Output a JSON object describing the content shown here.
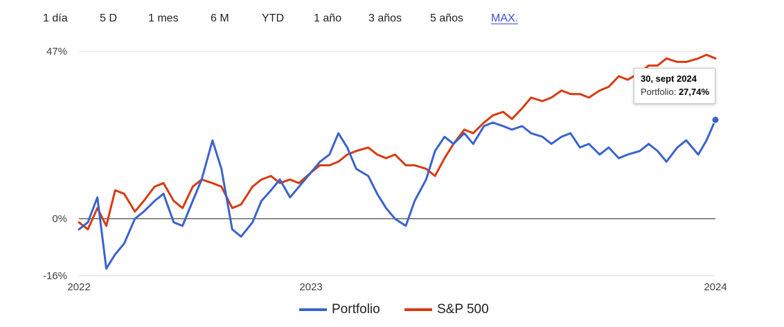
{
  "ranges": [
    {
      "label": "1 día",
      "active": false
    },
    {
      "label": "5 D",
      "active": false
    },
    {
      "label": "1 mes",
      "active": false
    },
    {
      "label": "6 M",
      "active": false
    },
    {
      "label": "YTD",
      "active": false
    },
    {
      "label": "1 año",
      "active": false
    },
    {
      "label": "3 años",
      "active": false
    },
    {
      "label": "5 años",
      "active": false
    },
    {
      "label": "MAX.",
      "active": true
    }
  ],
  "tooltip": {
    "date": "30, sept 2024",
    "series_label": "Portfolio:",
    "value": "27,74%"
  },
  "legend": [
    {
      "name": "Portfolio",
      "color": "#3a63cc"
    },
    {
      "name": "S&P 500",
      "color": "#d83b13"
    }
  ],
  "chart_data": {
    "type": "line",
    "title": "",
    "xlabel": "",
    "ylabel": "",
    "y_unit": "%",
    "ylim": [
      -16,
      47
    ],
    "y_ticks": [
      {
        "value": 47,
        "label": "47%"
      },
      {
        "value": 0,
        "label": "0%"
      },
      {
        "value": -16,
        "label": "-16%"
      }
    ],
    "x_ticks": [
      {
        "value": "2022-01-03",
        "label": "2022"
      },
      {
        "value": "2023-01-03",
        "label": "2023"
      },
      {
        "value": "2024-09-30",
        "label": "2024"
      }
    ],
    "xlim": [
      "2022-01-03",
      "2024-09-30"
    ],
    "zero_line": true,
    "grid": "horizontal (top and zero lines only)",
    "legend_position": "bottom",
    "highlight": {
      "series": "Portfolio",
      "x": "2024-09-30",
      "y": 27.74
    },
    "series": [
      {
        "name": "Portfolio",
        "color": "#3a63cc",
        "x": [
          "2022-01-03",
          "2022-01-17",
          "2022-02-01",
          "2022-02-15",
          "2022-03-01",
          "2022-03-15",
          "2022-04-01",
          "2022-04-15",
          "2022-05-02",
          "2022-05-16",
          "2022-06-01",
          "2022-06-15",
          "2022-07-01",
          "2022-07-15",
          "2022-08-01",
          "2022-08-15",
          "2022-09-01",
          "2022-09-15",
          "2022-10-03",
          "2022-10-17",
          "2022-11-01",
          "2022-11-15",
          "2022-12-01",
          "2022-12-15",
          "2023-01-03",
          "2023-01-17",
          "2023-02-01",
          "2023-02-15",
          "2023-03-01",
          "2023-03-15",
          "2023-04-03",
          "2023-04-17",
          "2023-05-01",
          "2023-05-15",
          "2023-06-01",
          "2023-06-15",
          "2023-07-03",
          "2023-07-17",
          "2023-08-01",
          "2023-08-15",
          "2023-09-01",
          "2023-09-15",
          "2023-10-02",
          "2023-10-16",
          "2023-11-01",
          "2023-11-15",
          "2023-12-01",
          "2023-12-15",
          "2024-01-02",
          "2024-01-16",
          "2024-02-01",
          "2024-02-15",
          "2024-03-01",
          "2024-03-15",
          "2024-04-01",
          "2024-04-15",
          "2024-05-01",
          "2024-05-15",
          "2024-06-03",
          "2024-06-17",
          "2024-07-01",
          "2024-07-15",
          "2024-08-01",
          "2024-08-15",
          "2024-09-03",
          "2024-09-16",
          "2024-09-30"
        ],
        "values": [
          -3,
          -1,
          6,
          -14,
          -10,
          -7,
          0,
          2,
          5,
          7,
          -1,
          -2,
          5,
          11,
          22,
          14,
          -3,
          -5,
          -1,
          5,
          8,
          11,
          6,
          9,
          13,
          16,
          18,
          24,
          20,
          14,
          12,
          7,
          3,
          0,
          -2,
          5,
          11,
          19,
          23,
          21,
          24,
          21,
          26,
          27,
          26,
          25,
          26,
          24,
          23,
          21,
          23,
          24,
          20,
          21,
          18,
          20,
          17,
          18,
          19,
          21,
          19,
          16,
          20,
          22,
          18,
          22,
          27.74
        ]
      },
      {
        "name": "S&P 500",
        "color": "#d83b13",
        "x": [
          "2022-01-03",
          "2022-01-17",
          "2022-02-01",
          "2022-02-15",
          "2022-03-01",
          "2022-03-15",
          "2022-04-01",
          "2022-04-15",
          "2022-05-02",
          "2022-05-16",
          "2022-06-01",
          "2022-06-15",
          "2022-07-01",
          "2022-07-15",
          "2022-08-01",
          "2022-08-15",
          "2022-09-01",
          "2022-09-15",
          "2022-10-03",
          "2022-10-17",
          "2022-11-01",
          "2022-11-15",
          "2022-12-01",
          "2022-12-15",
          "2023-01-03",
          "2023-01-17",
          "2023-02-01",
          "2023-02-15",
          "2023-03-01",
          "2023-03-15",
          "2023-04-03",
          "2023-04-17",
          "2023-05-01",
          "2023-05-15",
          "2023-06-01",
          "2023-06-15",
          "2023-07-03",
          "2023-07-17",
          "2023-08-01",
          "2023-08-15",
          "2023-09-01",
          "2023-09-15",
          "2023-10-02",
          "2023-10-16",
          "2023-11-01",
          "2023-11-15",
          "2023-12-01",
          "2023-12-15",
          "2024-01-02",
          "2024-01-16",
          "2024-02-01",
          "2024-02-15",
          "2024-03-01",
          "2024-03-15",
          "2024-04-01",
          "2024-04-15",
          "2024-05-01",
          "2024-05-15",
          "2024-06-03",
          "2024-06-17",
          "2024-07-01",
          "2024-07-15",
          "2024-08-01",
          "2024-08-15",
          "2024-09-03",
          "2024-09-16",
          "2024-09-30"
        ],
        "values": [
          -1,
          -3,
          3,
          -2,
          8,
          7,
          2,
          5,
          9,
          10,
          5,
          3,
          9,
          11,
          10,
          9,
          3,
          4,
          9,
          11,
          12,
          10,
          11,
          10,
          13,
          15,
          15,
          16,
          18,
          19,
          20,
          18,
          17,
          18,
          15,
          15,
          14,
          12,
          17,
          21,
          25,
          24,
          27,
          29,
          30,
          28,
          31,
          34,
          33,
          34,
          36,
          35,
          35,
          34,
          36,
          37,
          40,
          39,
          41,
          43,
          43,
          45,
          44,
          44,
          45,
          46,
          45
        ]
      }
    ]
  }
}
